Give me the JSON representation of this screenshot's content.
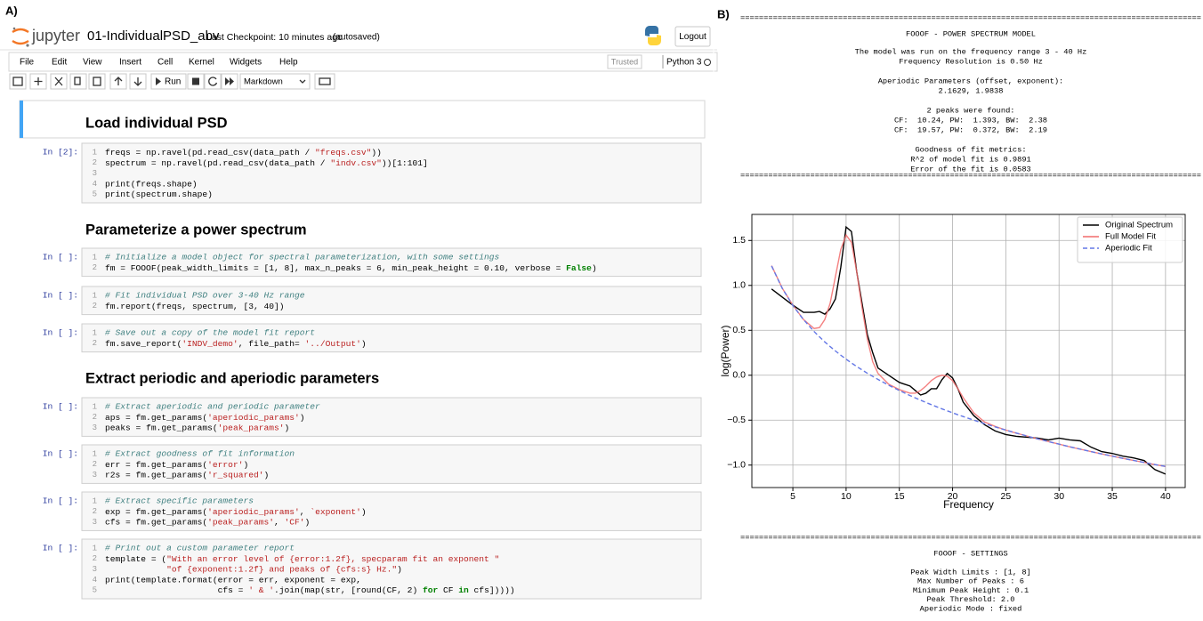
{
  "panel_a": {
    "label": "A)",
    "header": {
      "app": "jupyter",
      "notebook": "01-IndividualPSD_abv",
      "checkpoint": "Last Checkpoint: 10 minutes ago",
      "autosaved": "(autosaved)",
      "logout": "Logout"
    },
    "menu": [
      "File",
      "Edit",
      "View",
      "Insert",
      "Cell",
      "Kernel",
      "Widgets",
      "Help"
    ],
    "trusted": "Trusted",
    "kernel": "Python 3",
    "toolbar": {
      "run": "Run",
      "cell_type": "Markdown"
    },
    "cells": [
      {
        "type": "markdown",
        "selected": true,
        "text": "Load individual PSD"
      },
      {
        "type": "code",
        "prompt": "In [2]:",
        "line_numbers": [
          1,
          2,
          3,
          4,
          5
        ],
        "lines": [
          "freqs = np.ravel(pd.read_csv(data_path / \"freqs.csv\"))",
          "spectrum = np.ravel(pd.read_csv(data_path / \"indv.csv\"))[1:101]",
          null,
          "print(freqs.shape)",
          "print(spectrum.shape)"
        ]
      },
      {
        "type": "markdown",
        "selected": false,
        "text": "Parameterize a power spectrum"
      },
      {
        "type": "code",
        "prompt": "In [ ]:",
        "line_numbers": [
          1,
          2
        ],
        "lines": [
          "# Initialize a model object for spectral parameterization, with some settings",
          "fm = FOOOF(peak_width_limits = [1, 8], max_n_peaks = 6, min_peak_height = 0.10, verbose = False)"
        ]
      },
      {
        "type": "code",
        "prompt": "In [ ]:",
        "line_numbers": [
          1,
          2
        ],
        "lines": [
          "# Fit individual PSD over 3-40 Hz range",
          "fm.report(freqs, spectrum, [3, 40])"
        ]
      },
      {
        "type": "code",
        "prompt": "In [ ]:",
        "line_numbers": [
          1,
          2
        ],
        "lines": [
          "# Save out a copy of the model fit report",
          "fm.save_report('INDV_demo', file_path= '../Output')"
        ]
      },
      {
        "type": "markdown",
        "selected": false,
        "text": "Extract periodic and aperiodic parameters"
      },
      {
        "type": "code",
        "prompt": "In [ ]:",
        "line_numbers": [
          1,
          2,
          3
        ],
        "lines": [
          "# Extract aperiodic and periodic parameter",
          "aps = fm.get_params('aperiodic_params')",
          "peaks = fm.get_params('peak_params')"
        ]
      },
      {
        "type": "code",
        "prompt": "In [ ]:",
        "line_numbers": [
          1,
          2,
          3
        ],
        "lines": [
          "# Extract goodness of fit information",
          "err = fm.get_params('error')",
          "r2s = fm.get_params('r_squared')"
        ]
      },
      {
        "type": "code",
        "prompt": "In [ ]:",
        "line_numbers": [
          1,
          2,
          3
        ],
        "lines": [
          "# Extract specific parameters",
          "exp = fm.get_params('aperiodic_params', `exponent')",
          "cfs = fm.get_params('peak_params', 'CF')"
        ]
      },
      {
        "type": "code",
        "prompt": "In [ ]:",
        "line_numbers": [
          1,
          2,
          3,
          4,
          5
        ],
        "lines": [
          "# Print out a custom parameter report",
          "template = (\"With an error level of {error:1.2f}, specparam fit an exponent \"",
          "            \"of {exponent:1.2f} and peaks of {cfs:s} Hz.\")",
          "print(template.format(error = err, exponent = exp,",
          "                      cfs = ' & '.join(map(str, [round(CF, 2) for CF in cfs]))))"
        ]
      }
    ]
  },
  "panel_b": {
    "label": "B)",
    "rule": "===================================================================================================",
    "report_title": "FOOOF - POWER SPECTRUM MODEL",
    "report": [
      [
        "The model was run on the frequency range 3 - 40 Hz",
        "Frequency Resolution is 0.50 Hz"
      ],
      [
        "Aperiodic Parameters (offset, exponent):",
        "2.1629, 1.9838"
      ],
      [
        "2 peaks were found:",
        "CF:  10.24, PW:  1.393, BW:  2.38",
        "CF:  19.57, PW:  0.372, BW:  2.19"
      ],
      [
        "Goodness of fit metrics:",
        "R^2 of model fit is 0.9891",
        "Error of the fit is 0.0583"
      ]
    ],
    "settings_title": "FOOOF - SETTINGS",
    "settings": [
      "Peak Width Limits : [1, 8]",
      "Max Number of Peaks : 6",
      "Minimum Peak Height : 0.1",
      "Peak Threshold: 2.0",
      "Aperiodic Mode : fixed"
    ]
  },
  "chart_data": {
    "type": "line",
    "xlabel": "Frequency",
    "ylabel": "log(Power)",
    "x": [
      3,
      4,
      5,
      6,
      7,
      7.5,
      8,
      8.5,
      9,
      9.5,
      10,
      10.5,
      11,
      11.5,
      12,
      12.5,
      13,
      14,
      15,
      16,
      16.5,
      17,
      17.5,
      18,
      18.5,
      19,
      19.5,
      20,
      20.5,
      21,
      22,
      23,
      24,
      25,
      26,
      27,
      28,
      29,
      30,
      31,
      32,
      33,
      34,
      35,
      36,
      37,
      38,
      39,
      40
    ],
    "series": [
      {
        "name": "Original Spectrum",
        "color": "#000000",
        "linestyle": "solid",
        "values": [
          0.96,
          0.87,
          0.78,
          0.7,
          0.7,
          0.71,
          0.68,
          0.74,
          0.85,
          1.2,
          1.65,
          1.6,
          1.15,
          0.8,
          0.45,
          0.25,
          0.08,
          0.0,
          -0.08,
          -0.12,
          -0.17,
          -0.22,
          -0.2,
          -0.15,
          -0.15,
          -0.05,
          0.02,
          -0.03,
          -0.15,
          -0.3,
          -0.45,
          -0.55,
          -0.62,
          -0.66,
          -0.68,
          -0.69,
          -0.7,
          -0.72,
          -0.7,
          -0.72,
          -0.73,
          -0.8,
          -0.85,
          -0.87,
          -0.9,
          -0.92,
          -0.95,
          -1.05,
          -1.1
        ]
      },
      {
        "name": "Full Model Fit",
        "color": "#f26b6b",
        "linestyle": "solid",
        "values": [
          1.22,
          0.97,
          0.78,
          0.62,
          0.52,
          0.53,
          0.62,
          0.8,
          1.1,
          1.4,
          1.56,
          1.48,
          1.15,
          0.75,
          0.4,
          0.15,
          0.02,
          -0.1,
          -0.16,
          -0.2,
          -0.2,
          -0.17,
          -0.12,
          -0.06,
          -0.02,
          0.0,
          -0.01,
          -0.06,
          -0.15,
          -0.25,
          -0.42,
          -0.52,
          -0.57,
          -0.61,
          -0.645,
          -0.677,
          -0.708,
          -0.738,
          -0.767,
          -0.796,
          -0.823,
          -0.85,
          -0.875,
          -0.9,
          -0.925,
          -0.948,
          -0.971,
          -0.994,
          -1.015
        ]
      },
      {
        "name": "Aperiodic Fit",
        "color": "#6478e6",
        "linestyle": "dashed",
        "values": [
          1.216,
          0.968,
          0.776,
          0.619,
          0.486,
          0.427,
          0.371,
          0.319,
          0.27,
          0.223,
          0.179,
          0.137,
          0.097,
          0.059,
          0.022,
          -0.013,
          -0.047,
          -0.111,
          -0.17,
          -0.226,
          -0.252,
          -0.278,
          -0.303,
          -0.327,
          -0.351,
          -0.374,
          -0.396,
          -0.418,
          -0.44,
          -0.46,
          -0.5,
          -0.539,
          -0.575,
          -0.61,
          -0.644,
          -0.677,
          -0.708,
          -0.738,
          -0.767,
          -0.796,
          -0.823,
          -0.85,
          -0.875,
          -0.9,
          -0.925,
          -0.948,
          -0.971,
          -0.994,
          -1.015
        ]
      }
    ],
    "xlim": [
      1.15,
      41.85
    ],
    "ylim": [
      -1.25,
      1.79
    ],
    "xticks": [
      5,
      10,
      15,
      20,
      25,
      30,
      35,
      40
    ],
    "yticks": [
      {
        "value": -1,
        "label": "−1.0"
      },
      {
        "value": -0.5,
        "label": "−0.5"
      },
      {
        "value": 0,
        "label": "0.0"
      },
      0.5,
      {
        "value": 1,
        "label": "1.0"
      },
      1.5
    ],
    "grid": true,
    "legend": "upper right"
  }
}
